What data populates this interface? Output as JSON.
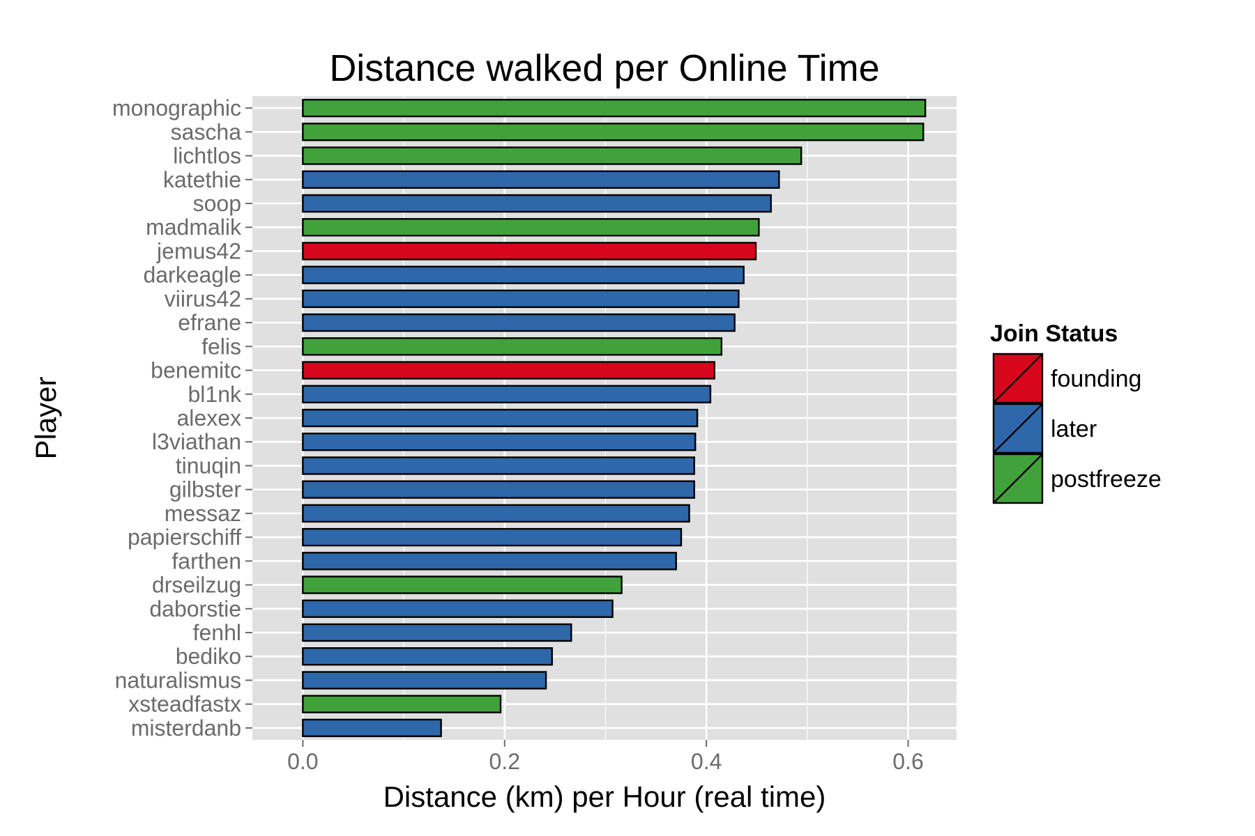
{
  "chart_data": {
    "type": "bar",
    "orientation": "horizontal",
    "title": "Distance walked per Online Time",
    "xlabel": "Distance (km) per Hour (real time)",
    "ylabel": "Player",
    "xlim": [
      -0.05,
      0.648
    ],
    "xticks": [
      0.0,
      0.2,
      0.4,
      0.6
    ],
    "xtick_labels": [
      "0.0",
      "0.2",
      "0.4",
      "0.6"
    ],
    "grid": true,
    "legend": {
      "title": "Join Status",
      "position": "right",
      "entries": [
        {
          "label": "founding",
          "color": "#d7061d"
        },
        {
          "label": "later",
          "color": "#2e67aa"
        },
        {
          "label": "postfreeze",
          "color": "#41a23b"
        }
      ]
    },
    "bars": [
      {
        "player": "monographic",
        "value": 0.617,
        "status": "postfreeze"
      },
      {
        "player": "sascha",
        "value": 0.615,
        "status": "postfreeze"
      },
      {
        "player": "lichtlos",
        "value": 0.494,
        "status": "postfreeze"
      },
      {
        "player": "katethie",
        "value": 0.472,
        "status": "later"
      },
      {
        "player": "soop",
        "value": 0.464,
        "status": "later"
      },
      {
        "player": "madmalik",
        "value": 0.452,
        "status": "postfreeze"
      },
      {
        "player": "jemus42",
        "value": 0.449,
        "status": "founding"
      },
      {
        "player": "darkeagle",
        "value": 0.437,
        "status": "later"
      },
      {
        "player": "viirus42",
        "value": 0.432,
        "status": "later"
      },
      {
        "player": "efrane",
        "value": 0.428,
        "status": "later"
      },
      {
        "player": "felis",
        "value": 0.415,
        "status": "postfreeze"
      },
      {
        "player": "benemitc",
        "value": 0.408,
        "status": "founding"
      },
      {
        "player": "bl1nk",
        "value": 0.404,
        "status": "later"
      },
      {
        "player": "alexex",
        "value": 0.391,
        "status": "later"
      },
      {
        "player": "l3viathan",
        "value": 0.389,
        "status": "later"
      },
      {
        "player": "tinuqin",
        "value": 0.388,
        "status": "later"
      },
      {
        "player": "gilbster",
        "value": 0.388,
        "status": "later"
      },
      {
        "player": "messaz",
        "value": 0.383,
        "status": "later"
      },
      {
        "player": "papierschiff",
        "value": 0.375,
        "status": "later"
      },
      {
        "player": "farthen",
        "value": 0.37,
        "status": "later"
      },
      {
        "player": "drseilzug",
        "value": 0.316,
        "status": "postfreeze"
      },
      {
        "player": "daborstie",
        "value": 0.307,
        "status": "later"
      },
      {
        "player": "fenhl",
        "value": 0.266,
        "status": "later"
      },
      {
        "player": "bediko",
        "value": 0.247,
        "status": "later"
      },
      {
        "player": "naturalismus",
        "value": 0.241,
        "status": "later"
      },
      {
        "player": "xsteadfastx",
        "value": 0.196,
        "status": "postfreeze"
      },
      {
        "player": "misterdanb",
        "value": 0.137,
        "status": "later"
      }
    ]
  },
  "colors": {
    "panel_background": "#e0e0e0",
    "gridline": "#ffffff",
    "bar_outline": "#000000",
    "tick_text": "#6b6b6b",
    "title_text": "#000000"
  }
}
